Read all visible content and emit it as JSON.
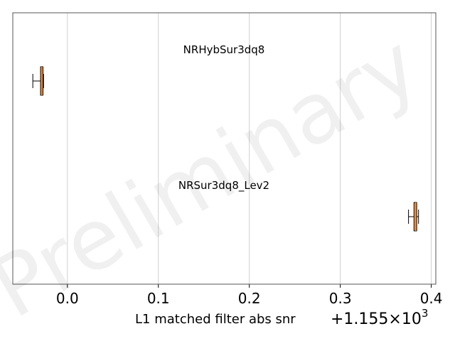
{
  "chart_data": {
    "type": "boxplot",
    "orientation": "horizontal",
    "xlabel": "L1 matched filter abs snr",
    "x_offset_label": {
      "base": "+1.155×10",
      "exponent": "3"
    },
    "x_offset": 1155,
    "xlim": [
      -0.06,
      0.405
    ],
    "xticks": [
      0.0,
      0.1,
      0.2,
      0.3,
      0.4
    ],
    "xtick_labels": [
      "0.0",
      "0.1",
      "0.2",
      "0.3",
      "0.4"
    ],
    "grid": "vertical",
    "series": [
      {
        "name": "NRHybSur3dq8",
        "whisker_low": -0.038,
        "q1": -0.0295,
        "median": -0.0282,
        "q3": -0.0268,
        "whisker_high": -0.0262
      },
      {
        "name": "NRSur3dq8_Lev2",
        "whisker_low": 0.375,
        "q1": 0.381,
        "median": 0.383,
        "q3": 0.384,
        "whisker_high": 0.386
      }
    ],
    "box_color": "#f4a460",
    "median_color": "#ff7f0e",
    "watermark": "Preliminary"
  }
}
